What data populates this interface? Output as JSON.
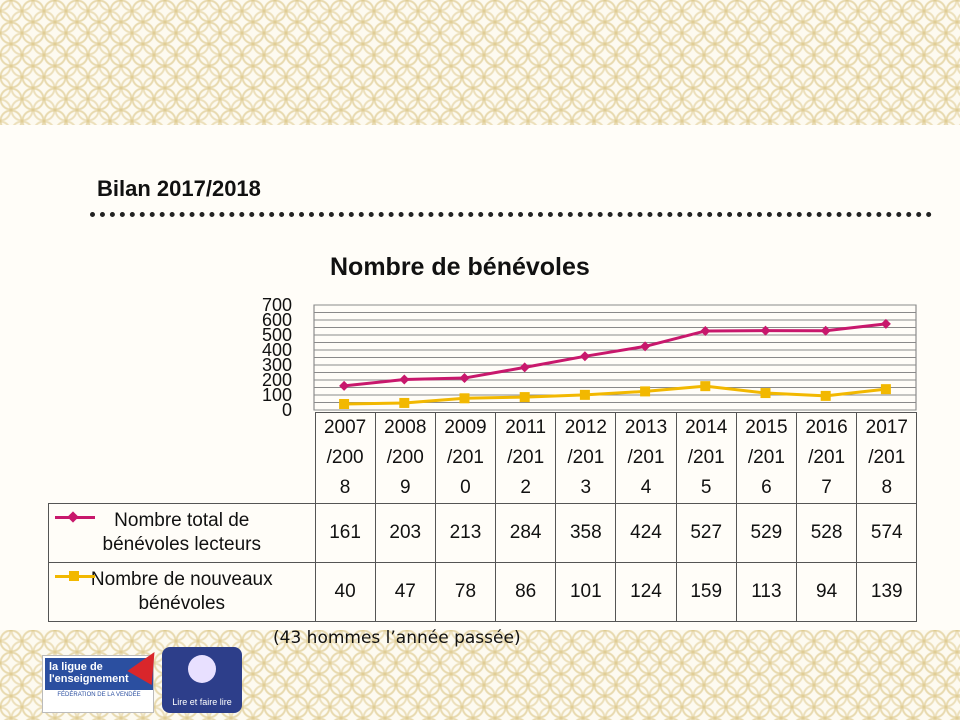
{
  "page": {
    "title": "Bilan 2017/2018",
    "note": "(43 hommes l’année passée)"
  },
  "chart_data": {
    "type": "line",
    "title": "Nombre de bénévoles",
    "categories": [
      "2007/2008",
      "2008/2009",
      "2009/2010",
      "2011/2012",
      "2012/2013",
      "2013/2014",
      "2014/2015",
      "2015/2016",
      "2016/2017",
      "2017/2018"
    ],
    "category_lines": [
      [
        "2007",
        "/200",
        "8"
      ],
      [
        "2008",
        "/200",
        "9"
      ],
      [
        "2009",
        "/201",
        "0"
      ],
      [
        "2011",
        "/201",
        "2"
      ],
      [
        "2012",
        "/201",
        "3"
      ],
      [
        "2013",
        "/201",
        "4"
      ],
      [
        "2014",
        "/201",
        "5"
      ],
      [
        "2015",
        "/201",
        "6"
      ],
      [
        "2016",
        "/201",
        "7"
      ],
      [
        "2017",
        "/201",
        "8"
      ]
    ],
    "ylim": [
      0,
      700
    ],
    "yticks": [
      0,
      100,
      200,
      300,
      400,
      500,
      600,
      700
    ],
    "grid": true,
    "legend": "data-table",
    "series": [
      {
        "name": "Nombre total de bénévoles lecteurs",
        "name_lines": [
          "Nombre total de",
          "bénévoles lecteurs"
        ],
        "color": "#c8186c",
        "marker": "diamond",
        "values": [
          161,
          203,
          213,
          284,
          358,
          424,
          527,
          529,
          528,
          574
        ]
      },
      {
        "name": "Nombre de nouveaux bénévoles",
        "name_lines": [
          "Nombre de nouveaux",
          "bénévoles"
        ],
        "color": "#f2b800",
        "marker": "square",
        "values": [
          40,
          47,
          78,
          86,
          101,
          124,
          159,
          113,
          94,
          139
        ]
      }
    ]
  },
  "logos": {
    "ligue_line1": "la ligue de",
    "ligue_line2": "l'enseignement",
    "ligue_sub": "FÉDÉRATION DE LA VENDÉE",
    "lire_text": "Lire et faire lire"
  }
}
